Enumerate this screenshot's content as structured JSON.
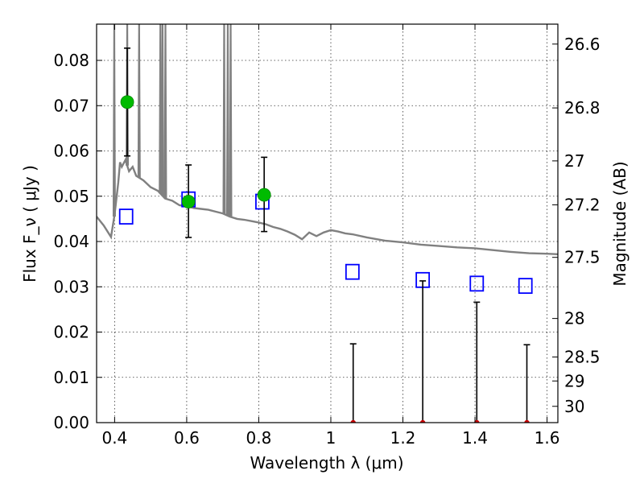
{
  "chart_data": {
    "type": "scatter",
    "xlabel": "Wavelength  λ (μm)",
    "ylabel": "Flux  F_ν  ( μJy )",
    "ylabel_right": "Magnitude (AB)",
    "xlim": [
      0.35,
      1.63
    ],
    "ylim": [
      0.0,
      0.088
    ],
    "x_ticks": [
      0.4,
      0.6,
      0.8,
      1.0,
      1.2,
      1.4,
      1.6
    ],
    "x_tick_labels": [
      "0.4",
      "0.6",
      "0.8",
      "1",
      "1.2",
      "1.4",
      "1.6"
    ],
    "y_ticks": [
      0.0,
      0.01,
      0.02,
      0.03,
      0.04,
      0.05,
      0.06,
      0.07,
      0.08
    ],
    "y_tick_labels": [
      "0.00",
      "0.01",
      "0.02",
      "0.03",
      "0.04",
      "0.05",
      "0.06",
      "0.07",
      "0.08"
    ],
    "right_ticks": [
      {
        "label": "26.6",
        "flux": 0.0836
      },
      {
        "label": "26.8",
        "flux": 0.0695
      },
      {
        "label": "27",
        "flux": 0.0578
      },
      {
        "label": "27.2",
        "flux": 0.0481
      },
      {
        "label": "27.5",
        "flux": 0.0365
      },
      {
        "label": "28",
        "flux": 0.023
      },
      {
        "label": "28.5",
        "flux": 0.0145
      },
      {
        "label": "29",
        "flux": 0.0092
      },
      {
        "label": "30",
        "flux": 0.0036
      }
    ],
    "grid": true,
    "series": [
      {
        "kind": "model_sed_line",
        "color": "#808080",
        "points": [
          [
            0.35,
            0.0455
          ],
          [
            0.37,
            0.0435
          ],
          [
            0.39,
            0.041
          ],
          [
            0.4,
            0.046
          ],
          [
            0.41,
            0.053
          ],
          [
            0.415,
            0.0575
          ],
          [
            0.42,
            0.0565
          ],
          [
            0.43,
            0.058
          ],
          [
            0.44,
            0.0555
          ],
          [
            0.45,
            0.0565
          ],
          [
            0.46,
            0.0545
          ],
          [
            0.47,
            0.054
          ],
          [
            0.48,
            0.0535
          ],
          [
            0.5,
            0.052
          ],
          [
            0.52,
            0.0512
          ],
          [
            0.54,
            0.0495
          ],
          [
            0.56,
            0.049
          ],
          [
            0.58,
            0.048
          ],
          [
            0.6,
            0.0478
          ],
          [
            0.62,
            0.0474
          ],
          [
            0.64,
            0.0472
          ],
          [
            0.66,
            0.047
          ],
          [
            0.68,
            0.0466
          ],
          [
            0.7,
            0.0462
          ],
          [
            0.72,
            0.0455
          ],
          [
            0.74,
            0.045
          ],
          [
            0.76,
            0.0448
          ],
          [
            0.78,
            0.0445
          ],
          [
            0.8,
            0.0442
          ],
          [
            0.82,
            0.0438
          ],
          [
            0.84,
            0.0432
          ],
          [
            0.86,
            0.0428
          ],
          [
            0.88,
            0.0422
          ],
          [
            0.9,
            0.0415
          ],
          [
            0.92,
            0.0405
          ],
          [
            0.94,
            0.042
          ],
          [
            0.96,
            0.0412
          ],
          [
            0.98,
            0.042
          ],
          [
            1.0,
            0.0425
          ],
          [
            1.02,
            0.0422
          ],
          [
            1.04,
            0.0418
          ],
          [
            1.06,
            0.0416
          ],
          [
            1.1,
            0.0409
          ],
          [
            1.15,
            0.0402
          ],
          [
            1.2,
            0.0398
          ],
          [
            1.25,
            0.0393
          ],
          [
            1.3,
            0.039
          ],
          [
            1.35,
            0.0387
          ],
          [
            1.4,
            0.0385
          ],
          [
            1.45,
            0.0381
          ],
          [
            1.5,
            0.0377
          ],
          [
            1.55,
            0.0374
          ],
          [
            1.6,
            0.0373
          ],
          [
            1.63,
            0.0372
          ]
        ],
        "emission_spikes": [
          {
            "x": 0.399,
            "peak": 0.088
          },
          {
            "x": 0.435,
            "peak": 0.088
          },
          {
            "x": 0.468,
            "peak": 0.088
          },
          {
            "x": 0.527,
            "peak": 0.088
          },
          {
            "x": 0.533,
            "peak": 0.088
          },
          {
            "x": 0.541,
            "peak": 0.088
          },
          {
            "x": 0.704,
            "peak": 0.088
          },
          {
            "x": 0.714,
            "peak": 0.088
          },
          {
            "x": 0.722,
            "peak": 0.088
          }
        ]
      },
      {
        "kind": "model_photometry_squares",
        "color": "#0000ff",
        "points": [
          [
            0.432,
            0.0455
          ],
          [
            0.605,
            0.0493
          ],
          [
            0.81,
            0.0488
          ],
          [
            1.06,
            0.0333
          ],
          [
            1.255,
            0.0315
          ],
          [
            1.405,
            0.0307
          ],
          [
            1.54,
            0.0302
          ]
        ]
      },
      {
        "kind": "observed_detections",
        "color": "#00bb00",
        "points": [
          {
            "x": 0.435,
            "y": 0.0708,
            "err_low": 0.0589,
            "err_high": 0.0827
          },
          {
            "x": 0.605,
            "y": 0.0488,
            "err_low": 0.0409,
            "err_high": 0.0569
          },
          {
            "x": 0.815,
            "y": 0.0503,
            "err_low": 0.0422,
            "err_high": 0.0586
          }
        ]
      },
      {
        "kind": "observed_upper_limits",
        "color": "#cc0000",
        "points": [
          {
            "x": 1.062,
            "y": 0.0,
            "err_high": 0.0174
          },
          {
            "x": 1.255,
            "y": 0.0,
            "err_high": 0.0313
          },
          {
            "x": 1.405,
            "y": 0.0,
            "err_high": 0.0266
          },
          {
            "x": 1.544,
            "y": 0.0,
            "err_high": 0.0172
          }
        ]
      }
    ]
  }
}
